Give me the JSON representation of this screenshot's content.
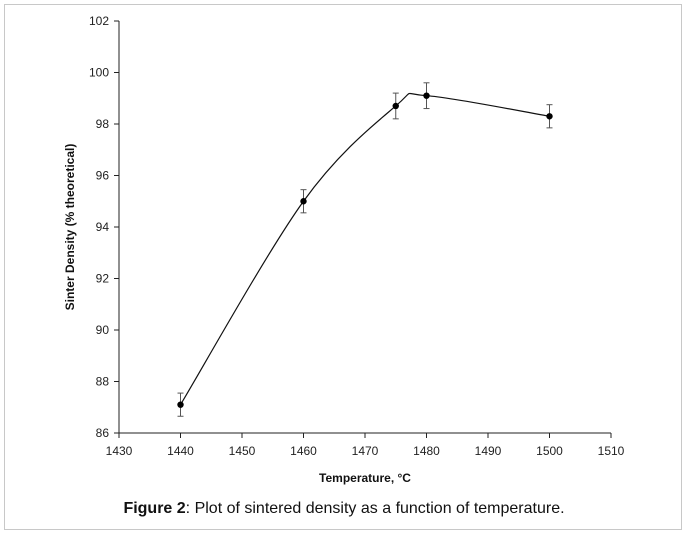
{
  "caption": {
    "label": "Figure 2",
    "text": ": Plot of sintered density as a function of temperature."
  },
  "chart_data": {
    "type": "line",
    "xlabel": "Temperature, °C",
    "ylabel": "Sinter Density (% theoretical)",
    "xlim": [
      1430,
      1510
    ],
    "ylim": [
      86,
      102
    ],
    "xticks": [
      1430,
      1440,
      1450,
      1460,
      1470,
      1480,
      1490,
      1500,
      1510
    ],
    "yticks": [
      86,
      88,
      90,
      92,
      94,
      96,
      98,
      100,
      102
    ],
    "xtick_labels": [
      "1430",
      "1440",
      "1450",
      "1460",
      "1470",
      "1480",
      "1490",
      "1500",
      "1510"
    ],
    "ytick_labels": [
      "86",
      "88",
      "90",
      "92",
      "94",
      "96",
      "98",
      "100",
      "102"
    ],
    "grid": false,
    "legend": "none",
    "smooth": true,
    "series": [
      {
        "x": [
          1440,
          1460,
          1475,
          1480,
          1500
        ],
        "y": [
          87.1,
          95.0,
          98.7,
          99.1,
          98.3
        ],
        "error": [
          0.45,
          0.45,
          0.5,
          0.5,
          0.45
        ]
      }
    ],
    "colors": {
      "line": "#111111",
      "marker": "#000000",
      "errorbar": "#555555",
      "axis": "#222222"
    }
  }
}
